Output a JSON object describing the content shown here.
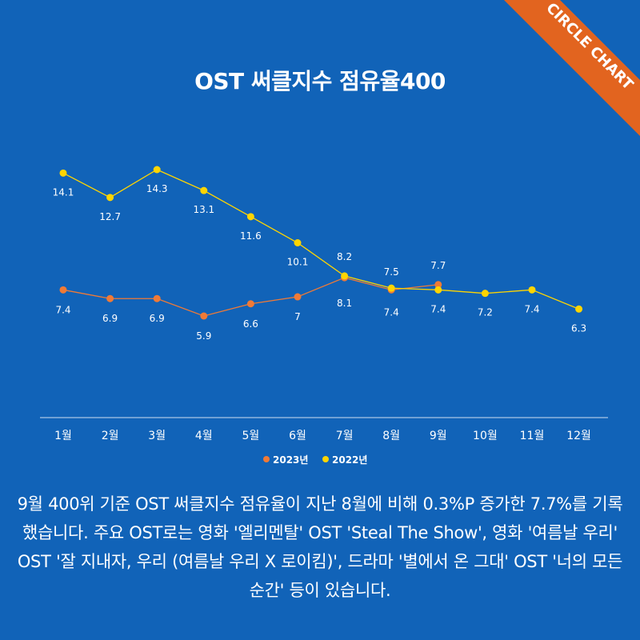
{
  "badge": {
    "text": "CIRCLE CHART",
    "color": "#e2641f"
  },
  "chart_data": {
    "type": "line",
    "title": "OST 써클지수 점유율400",
    "categories": [
      "1월",
      "2월",
      "3월",
      "4월",
      "5월",
      "6월",
      "7월",
      "8월",
      "9월",
      "10월",
      "11월",
      "12월"
    ],
    "series": [
      {
        "name": "2023년",
        "color": "#f07a36",
        "values": [
          7.4,
          6.9,
          6.9,
          5.9,
          6.6,
          7,
          8.1,
          7.4,
          7.7,
          null,
          null,
          null
        ]
      },
      {
        "name": "2022년",
        "color": "#ffd500",
        "values": [
          14.1,
          12.7,
          14.3,
          13.1,
          11.6,
          10.1,
          8.2,
          7.5,
          7.4,
          7.2,
          7.4,
          6.3
        ]
      }
    ],
    "legend_position": "bottom",
    "grid": false
  },
  "description": "9월 400위 기준 OST 써클지수 점유율이 지난 8월에 비해 0.3%P 증가한 7.7%를 기록했습니다. 주요 OST로는 영화 '엘리멘탈' OST 'Steal The Show', 영화 '여름날 우리' OST '잘 지내자, 우리 (여름날 우리 X 로이킴)', 드라마 '별에서 온 그대' OST '너의 모든 순간' 등이 있습니다."
}
